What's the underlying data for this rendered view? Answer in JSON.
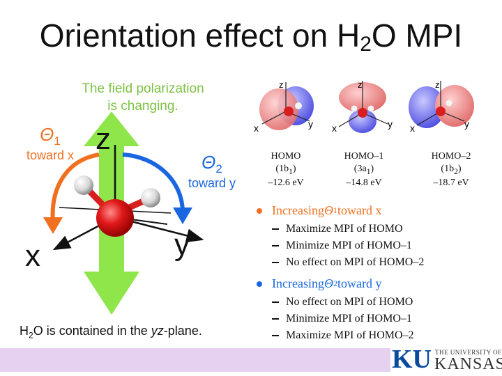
{
  "slide": {
    "title_prefix": "Orientation effect on H",
    "title_sub": "2",
    "title_suffix": "O MPI"
  },
  "diagram": {
    "field_line1": "The field polarization",
    "field_line2": "is changing.",
    "theta1_symbol": "Θ",
    "theta1_sub": "1",
    "theta1_text": "toward x",
    "theta2_symbol": "Θ",
    "theta2_sub": "2",
    "theta2_text": "toward y",
    "axis_z": "z",
    "axis_x": "x",
    "axis_y": "y",
    "caption_prefix": "H",
    "caption_sub": "2",
    "caption_mid": "O is contained in the ",
    "caption_italic": "yz",
    "caption_suffix": "-plane.",
    "colors": {
      "green": "#7dc242",
      "orange": "#f07020",
      "blue": "#1a66e0",
      "red": "#d81e1e"
    }
  },
  "orbitals": [
    {
      "name": "HOMO",
      "symmetry_prefix": "(1b",
      "symmetry_sub": "1",
      "symmetry_suffix": ")",
      "energy": "–12.6 eV",
      "axes": {
        "z": "z",
        "x": "x",
        "y": "y"
      }
    },
    {
      "name": "HOMO–1",
      "symmetry_prefix": "(3a",
      "symmetry_sub": "1",
      "symmetry_suffix": ")",
      "energy": "–14.8 eV",
      "axes": {
        "z": "z",
        "x": "x",
        "y": "y"
      }
    },
    {
      "name": "HOMO–2",
      "symmetry_prefix": "(1b",
      "symmetry_sub": "2",
      "symmetry_suffix": ")",
      "energy": "–18.7 eV",
      "axes": {
        "z": "z",
        "x": "x",
        "y": "y"
      }
    }
  ],
  "bullets": [
    {
      "head_prefix": "Increasing ",
      "theta": "Θ",
      "theta_sub": "1",
      "head_suffix": " toward x",
      "color": "#f07020",
      "items": [
        "Maximize MPI of HOMO",
        "Minimize MPI of HOMO–1",
        "No effect on MPI of HOMO–2"
      ]
    },
    {
      "head_prefix": "Increasing ",
      "theta": "Θ",
      "theta_sub": "2",
      "head_suffix": " toward y",
      "color": "#1a66e0",
      "items": [
        "No effect on MPI of HOMO",
        "Minimize MPI of HOMO–1",
        "Maximize MPI of HOMO–2"
      ]
    }
  ],
  "logo": {
    "ku": "KU",
    "line1": "THE UNIVERSITY OF",
    "line2": "KANSAS"
  }
}
